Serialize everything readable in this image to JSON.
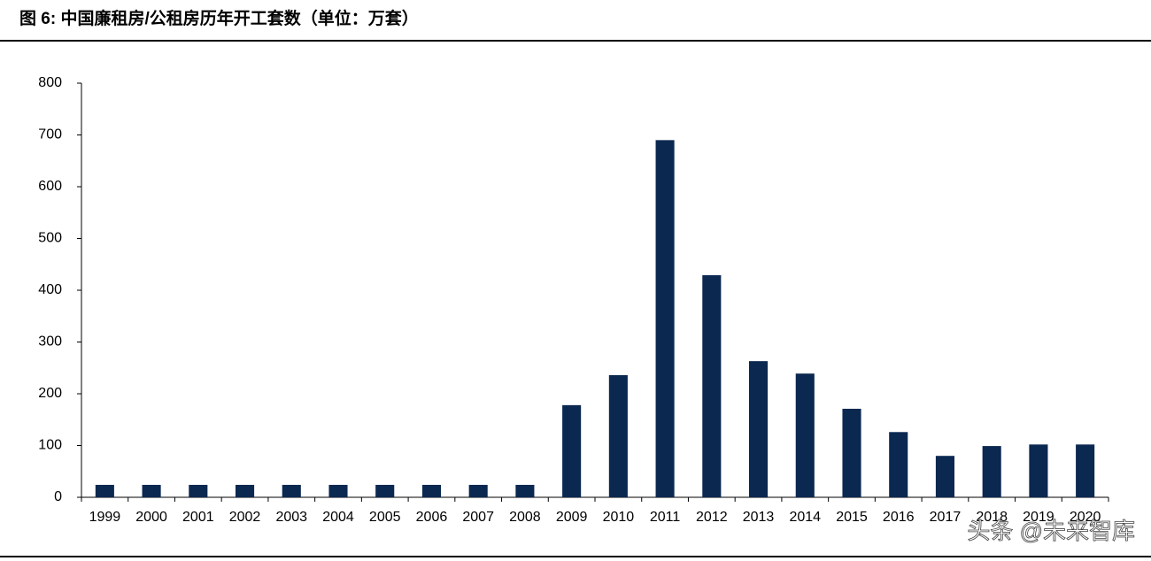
{
  "chart_data": {
    "type": "bar",
    "title": "图 6:  中国廉租房/公租房历年开工套数（单位：万套）",
    "categories": [
      "1999",
      "2000",
      "2001",
      "2002",
      "2003",
      "2004",
      "2005",
      "2006",
      "2007",
      "2008",
      "2009",
      "2010",
      "2011",
      "2012",
      "2013",
      "2014",
      "2015",
      "2016",
      "2017",
      "2018",
      "2019",
      "2020"
    ],
    "values": [
      24,
      24,
      24,
      24,
      24,
      24,
      24,
      24,
      24,
      24,
      178,
      236,
      690,
      429,
      263,
      239,
      171,
      126,
      80,
      99,
      102,
      102
    ],
    "color": "#0b2850",
    "ylim": [
      0,
      800
    ],
    "yticks": [
      0,
      100,
      200,
      300,
      400,
      500,
      600,
      700,
      800
    ],
    "grid": false,
    "watermark": "头条 @未来智库"
  }
}
